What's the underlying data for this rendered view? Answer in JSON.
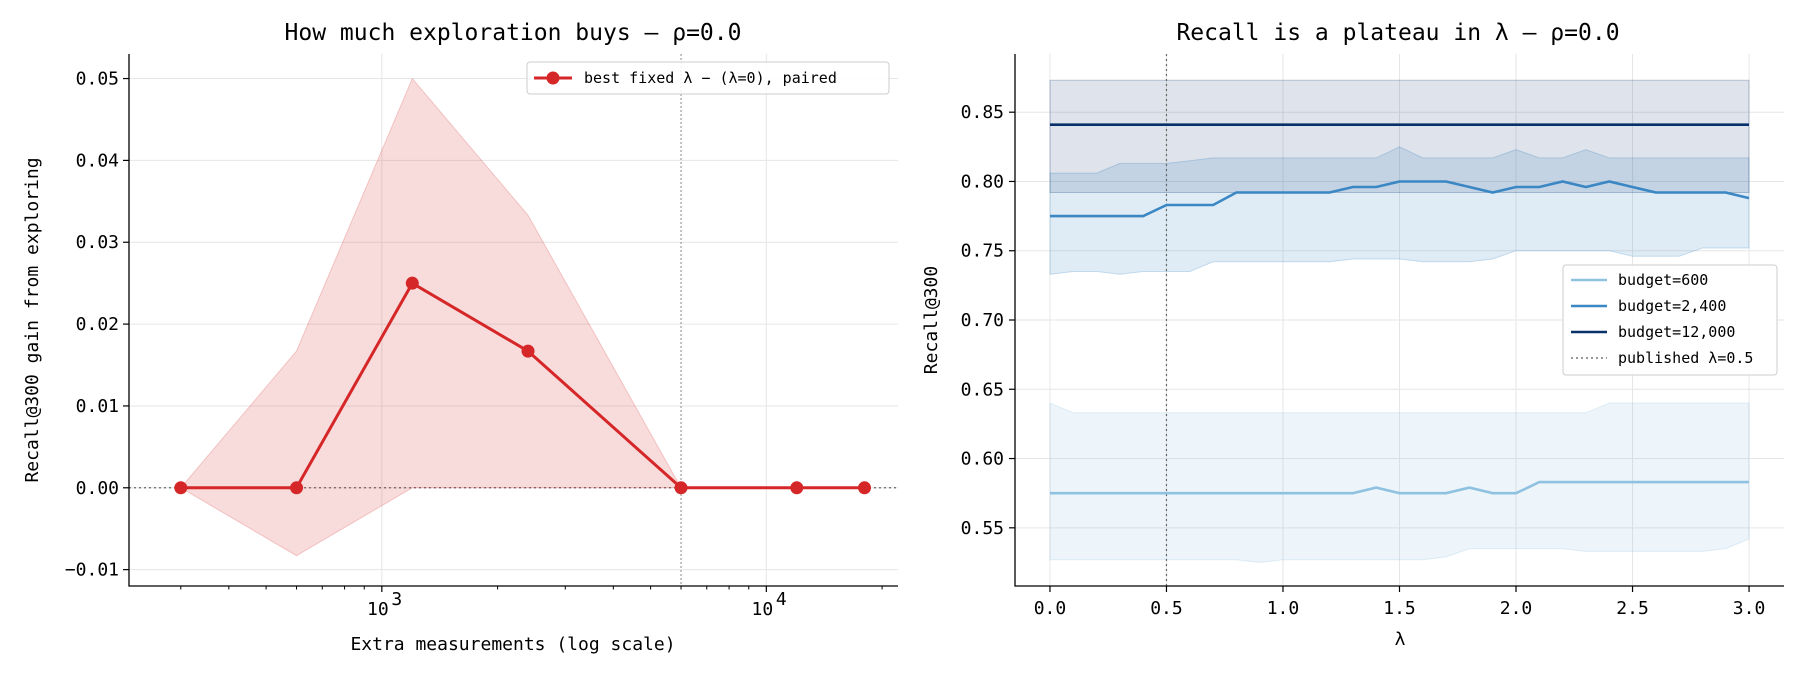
{
  "chart_data": [
    {
      "type": "line",
      "title": "How much exploration buys — ρ=0.0",
      "xlabel": "Extra measurements (log scale)",
      "ylabel": "Recall@300 gain from exploring",
      "xscale": "log",
      "xlim": [
        220,
        22000
      ],
      "ylim": [
        -0.012,
        0.053
      ],
      "yticks": [
        -0.01,
        0.0,
        0.01,
        0.02,
        0.03,
        0.04,
        0.05
      ],
      "ytick_labels": [
        "−0.01",
        "0.00",
        "0.01",
        "0.02",
        "0.03",
        "0.04",
        "0.05"
      ],
      "xticks": [
        1000,
        10000
      ],
      "xtick_base_labels": [
        "10",
        "10"
      ],
      "xtick_exp_labels": [
        "3",
        "4"
      ],
      "grid": true,
      "legend_position": "upper-right",
      "reference_lines": [
        {
          "axis": "y",
          "value": 0.0,
          "style": "dotted"
        },
        {
          "axis": "x",
          "value": 6000,
          "style": "dotted"
        }
      ],
      "series": [
        {
          "name": "best fixed λ − (λ=0), paired",
          "color": "#d62728",
          "x": [
            300,
            600,
            1200,
            2400,
            6000,
            12000,
            18000
          ],
          "y": [
            0.0,
            0.0,
            0.025,
            0.0167,
            0.0,
            0.0,
            0.0
          ],
          "band_low": [
            0.0,
            -0.0083,
            0.0,
            0.0,
            0.0,
            0.0,
            0.0
          ],
          "band_high": [
            0.0,
            0.0167,
            0.05,
            0.0333,
            0.0,
            0.0,
            0.0
          ]
        }
      ]
    },
    {
      "type": "line",
      "title": "Recall is a plateau in λ — ρ=0.0",
      "xlabel": "λ",
      "ylabel": "Recall@300",
      "xlim": [
        -0.15,
        3.15
      ],
      "ylim": [
        0.508,
        0.892
      ],
      "xticks": [
        0.0,
        0.5,
        1.0,
        1.5,
        2.0,
        2.5,
        3.0
      ],
      "xtick_labels": [
        "0.0",
        "0.5",
        "1.0",
        "1.5",
        "2.0",
        "2.5",
        "3.0"
      ],
      "yticks": [
        0.55,
        0.6,
        0.65,
        0.7,
        0.75,
        0.8,
        0.85
      ],
      "ytick_labels": [
        "0.55",
        "0.60",
        "0.65",
        "0.70",
        "0.75",
        "0.80",
        "0.85"
      ],
      "grid": true,
      "legend_position": "center-right",
      "reference_lines": [
        {
          "axis": "x",
          "value": 0.5,
          "style": "dotted",
          "name": "published λ=0.5"
        }
      ],
      "x": [
        0.0,
        0.1,
        0.2,
        0.3,
        0.4,
        0.5,
        0.6,
        0.7,
        0.8,
        0.9,
        1.0,
        1.1,
        1.2,
        1.3,
        1.4,
        1.5,
        1.6,
        1.7,
        1.8,
        1.9,
        2.0,
        2.1,
        2.2,
        2.3,
        2.4,
        2.5,
        2.6,
        2.7,
        2.8,
        2.9,
        3.0
      ],
      "series": [
        {
          "name": "budget=600",
          "color": "#8fc1e0",
          "band_opacity": 0.16,
          "y": [
            0.575,
            0.575,
            0.575,
            0.575,
            0.575,
            0.575,
            0.575,
            0.575,
            0.575,
            0.575,
            0.575,
            0.575,
            0.575,
            0.575,
            0.579,
            0.575,
            0.575,
            0.575,
            0.579,
            0.575,
            0.575,
            0.583,
            0.583,
            0.583,
            0.583,
            0.583,
            0.583,
            0.583,
            0.583,
            0.583,
            0.583
          ],
          "band_low": [
            0.527,
            0.527,
            0.527,
            0.527,
            0.527,
            0.527,
            0.527,
            0.527,
            0.527,
            0.525,
            0.527,
            0.527,
            0.527,
            0.527,
            0.527,
            0.527,
            0.527,
            0.529,
            0.535,
            0.535,
            0.535,
            0.535,
            0.535,
            0.533,
            0.533,
            0.533,
            0.533,
            0.533,
            0.533,
            0.535,
            0.542
          ],
          "band_high": [
            0.64,
            0.633,
            0.633,
            0.633,
            0.633,
            0.633,
            0.633,
            0.633,
            0.633,
            0.633,
            0.633,
            0.633,
            0.633,
            0.633,
            0.633,
            0.633,
            0.633,
            0.633,
            0.633,
            0.633,
            0.633,
            0.633,
            0.633,
            0.633,
            0.64,
            0.64,
            0.64,
            0.64,
            0.64,
            0.64,
            0.64
          ]
        },
        {
          "name": "budget=2,400",
          "color": "#3a87c4",
          "band_opacity": 0.16,
          "y": [
            0.775,
            0.775,
            0.775,
            0.775,
            0.775,
            0.783,
            0.783,
            0.783,
            0.792,
            0.792,
            0.792,
            0.792,
            0.792,
            0.796,
            0.796,
            0.8,
            0.8,
            0.8,
            0.796,
            0.792,
            0.796,
            0.796,
            0.8,
            0.796,
            0.8,
            0.796,
            0.792,
            0.792,
            0.792,
            0.792,
            0.788
          ],
          "band_low": [
            0.733,
            0.735,
            0.735,
            0.733,
            0.735,
            0.735,
            0.735,
            0.742,
            0.742,
            0.742,
            0.742,
            0.742,
            0.742,
            0.744,
            0.744,
            0.744,
            0.742,
            0.742,
            0.742,
            0.744,
            0.75,
            0.75,
            0.75,
            0.75,
            0.75,
            0.746,
            0.746,
            0.746,
            0.752,
            0.752,
            0.752
          ],
          "band_high": [
            0.806,
            0.806,
            0.806,
            0.813,
            0.813,
            0.813,
            0.815,
            0.817,
            0.817,
            0.817,
            0.817,
            0.817,
            0.817,
            0.817,
            0.817,
            0.825,
            0.817,
            0.817,
            0.817,
            0.817,
            0.823,
            0.817,
            0.817,
            0.823,
            0.817,
            0.817,
            0.817,
            0.817,
            0.817,
            0.817,
            0.817
          ]
        },
        {
          "name": "budget=12,000",
          "color": "#08306b",
          "band_opacity": 0.13,
          "y": [
            0.841,
            0.841,
            0.841,
            0.841,
            0.841,
            0.841,
            0.841,
            0.841,
            0.841,
            0.841,
            0.841,
            0.841,
            0.841,
            0.841,
            0.841,
            0.841,
            0.841,
            0.841,
            0.841,
            0.841,
            0.841,
            0.841,
            0.841,
            0.841,
            0.841,
            0.841,
            0.841,
            0.841,
            0.841,
            0.841,
            0.841
          ],
          "band_low": [
            0.792,
            0.792,
            0.792,
            0.792,
            0.792,
            0.792,
            0.792,
            0.792,
            0.792,
            0.792,
            0.792,
            0.792,
            0.792,
            0.792,
            0.792,
            0.792,
            0.792,
            0.792,
            0.792,
            0.792,
            0.792,
            0.792,
            0.792,
            0.792,
            0.792,
            0.792,
            0.792,
            0.792,
            0.792,
            0.792,
            0.792
          ],
          "band_high": [
            0.873,
            0.873,
            0.873,
            0.873,
            0.873,
            0.873,
            0.873,
            0.873,
            0.873,
            0.873,
            0.873,
            0.873,
            0.873,
            0.873,
            0.873,
            0.873,
            0.873,
            0.873,
            0.873,
            0.873,
            0.873,
            0.873,
            0.873,
            0.873,
            0.873,
            0.873,
            0.873,
            0.873,
            0.873,
            0.873,
            0.873
          ]
        }
      ],
      "legend": [
        "budget=600",
        "budget=2,400",
        "budget=12,000",
        "published λ=0.5"
      ]
    }
  ]
}
